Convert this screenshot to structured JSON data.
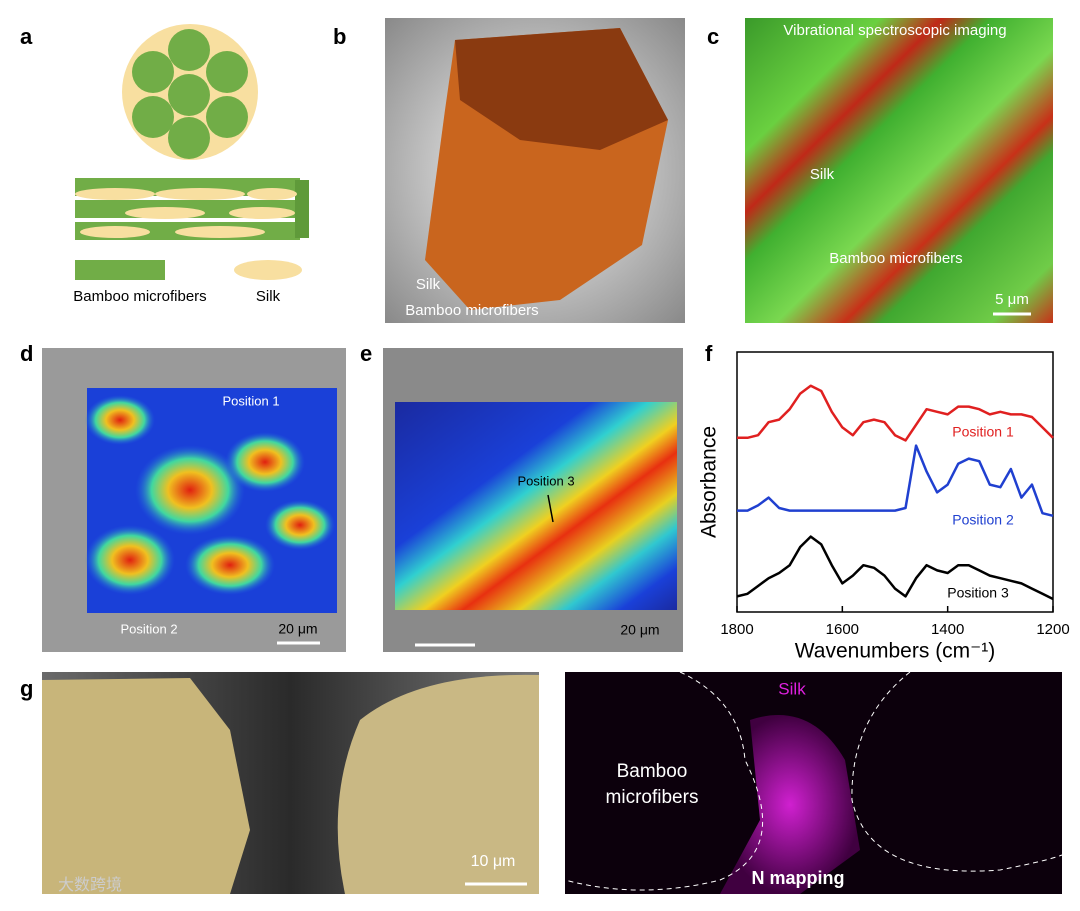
{
  "panels": {
    "a": {
      "letter": "a",
      "legend_fiber": "Bamboo microfibers",
      "legend_silk": "Silk"
    },
    "b": {
      "letter": "b",
      "silk": "Silk",
      "fiber": "Bamboo microfibers"
    },
    "c": {
      "letter": "c",
      "title": "Vibrational spectroscopic imaging",
      "silk": "Silk",
      "fiber": "Bamboo microfibers",
      "scale": "5 μm"
    },
    "d": {
      "letter": "d",
      "pos1": "Position 1",
      "pos2": "Position 2",
      "scale": "20 μm"
    },
    "e": {
      "letter": "e",
      "pos3": "Position 3",
      "scale": "20 μm"
    },
    "f": {
      "letter": "f"
    },
    "g": {
      "letter": "g",
      "scale": "10 μm",
      "silk": "Silk",
      "fiber_line1": "Bamboo",
      "fiber_line2": "microfibers",
      "mapping": "N mapping"
    },
    "watermark": "大数跨境"
  },
  "chart_data": {
    "type": "line",
    "xlabel": "Wavenumbers (cm⁻¹)",
    "ylabel": "Absorbance",
    "x": [
      1800,
      1780,
      1760,
      1740,
      1720,
      1700,
      1680,
      1660,
      1640,
      1620,
      1600,
      1580,
      1560,
      1540,
      1520,
      1500,
      1480,
      1460,
      1440,
      1420,
      1400,
      1380,
      1360,
      1340,
      1320,
      1300,
      1280,
      1260,
      1240,
      1220,
      1200
    ],
    "xlim": [
      1800,
      1200
    ],
    "xticks": [
      1800,
      1600,
      1400,
      1200
    ],
    "ylim": [
      0,
      10
    ],
    "series": [
      {
        "name": "Position 1",
        "color": "#e02020",
        "values": [
          6.7,
          6.7,
          6.8,
          7.3,
          7.4,
          7.8,
          8.4,
          8.7,
          8.5,
          7.7,
          7.1,
          6.8,
          7.3,
          7.4,
          7.3,
          6.8,
          6.6,
          7.2,
          7.8,
          7.7,
          7.6,
          7.9,
          7.9,
          7.8,
          7.6,
          7.7,
          7.6,
          7.6,
          7.5,
          7.1,
          6.7
        ]
      },
      {
        "name": "Position 2",
        "color": "#2040d0",
        "values": [
          3.9,
          3.9,
          4.1,
          4.4,
          4.0,
          3.9,
          3.9,
          3.9,
          3.9,
          3.9,
          3.9,
          3.9,
          3.9,
          3.9,
          3.9,
          3.9,
          4.0,
          6.4,
          5.4,
          4.6,
          4.9,
          5.7,
          5.9,
          5.8,
          4.9,
          4.8,
          5.5,
          4.4,
          4.9,
          3.8,
          3.7
        ]
      },
      {
        "name": "Position 3",
        "color": "#000000",
        "values": [
          0.6,
          0.7,
          1.0,
          1.3,
          1.5,
          1.8,
          2.5,
          2.9,
          2.6,
          1.8,
          1.1,
          1.4,
          1.8,
          1.7,
          1.4,
          0.9,
          0.6,
          1.3,
          1.8,
          1.6,
          1.5,
          1.8,
          1.8,
          1.6,
          1.4,
          1.3,
          1.2,
          1.1,
          0.9,
          0.7,
          0.5
        ]
      }
    ]
  }
}
